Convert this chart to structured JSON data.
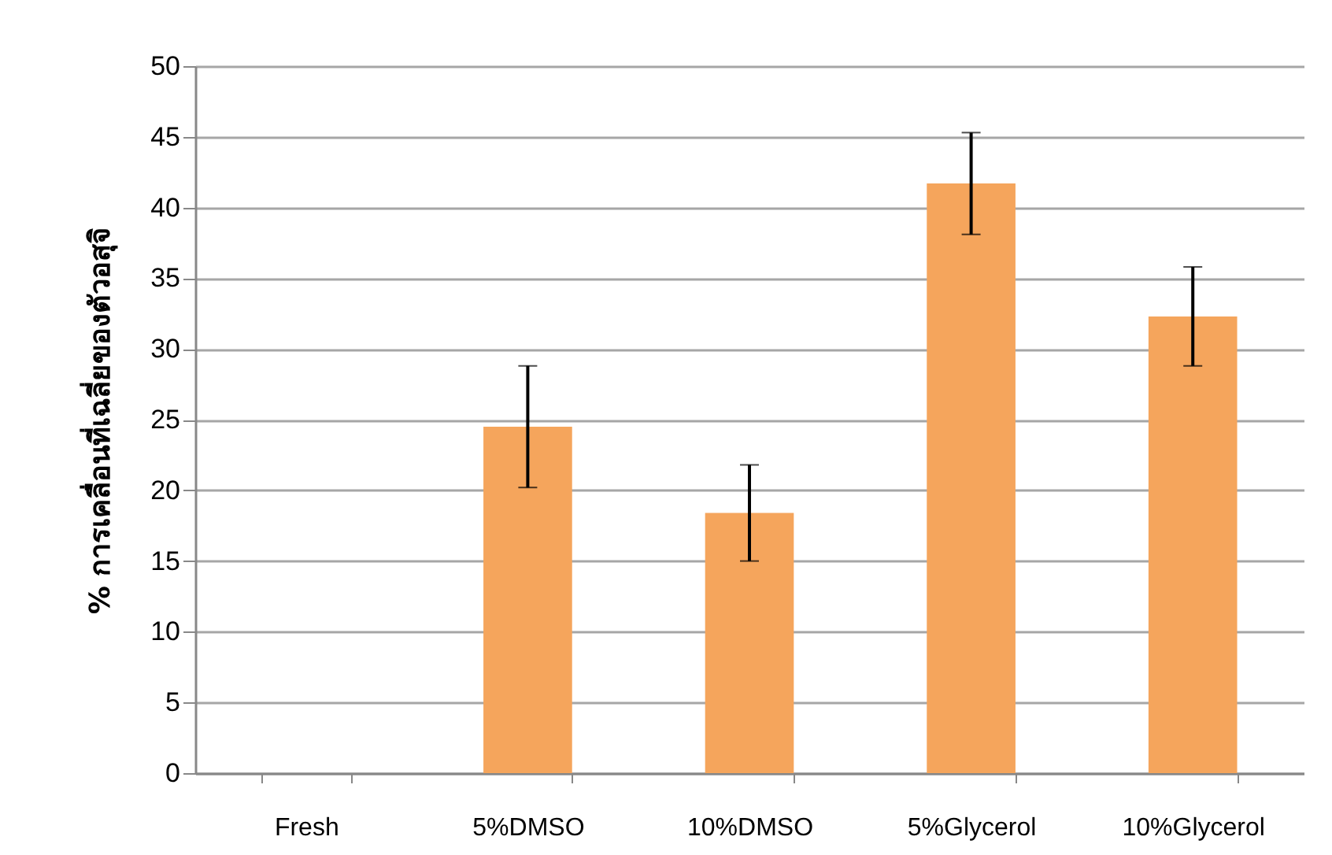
{
  "chart_data": {
    "type": "bar",
    "ylabel": "% การเคลื่อนที่เฉลี่ยของตัวอสุจิ",
    "categories": [
      "Fresh",
      "5%DMSO",
      "10%DMSO",
      "5%Glycerol",
      "10%Glycerol"
    ],
    "values": [
      0,
      24.5,
      18.4,
      41.7,
      32.3
    ],
    "errors": [
      null,
      4.3,
      3.4,
      3.6,
      3.5
    ],
    "color": "#f5a55c",
    "ylim": [
      0,
      50
    ],
    "yticks": [
      0,
      5,
      10,
      15,
      20,
      25,
      30,
      35,
      40,
      45,
      50
    ],
    "grid": "y"
  }
}
